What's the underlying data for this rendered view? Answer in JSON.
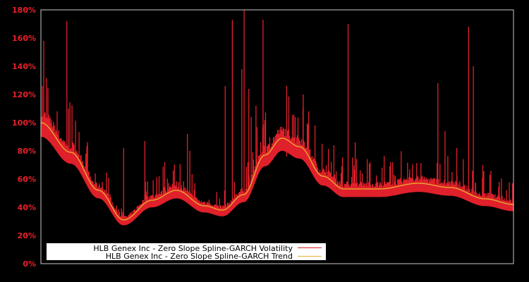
{
  "chart_data": {
    "type": "line",
    "title": "",
    "xlabel": "",
    "ylabel": "",
    "ylim": [
      0,
      180
    ],
    "y_ticks": [
      "0%",
      "20%",
      "40%",
      "60%",
      "80%",
      "100%",
      "120%",
      "140%",
      "160%",
      "180%"
    ],
    "grid": false,
    "legend_position": "lower-left",
    "colors": {
      "background": "#000000",
      "axis": "#c8c8c8",
      "tick_label": "#e8202a",
      "volatility": "#e0202a",
      "trend": "#e8b030",
      "legend_bg": "#ffffff"
    },
    "series": [
      {
        "name": "HLB Genex Inc - Zero Slope Spline-GARCH Volatility",
        "color": "#e0202a",
        "description": "Daily GARCH volatility; dense band slightly below/around trend with frequent spikes",
        "spikes_x_frac": [
          0.003,
          0.006,
          0.012,
          0.02,
          0.03,
          0.045,
          0.055,
          0.07,
          0.085,
          0.095,
          0.115,
          0.13,
          0.14,
          0.175,
          0.22,
          0.25,
          0.262,
          0.28,
          0.31,
          0.315,
          0.39,
          0.405,
          0.425,
          0.43,
          0.44,
          0.445,
          0.455,
          0.47,
          0.5,
          0.51,
          0.52,
          0.555,
          0.58,
          0.62,
          0.65,
          0.665,
          0.68,
          0.74,
          0.75,
          0.78,
          0.8,
          0.84,
          0.855,
          0.87,
          0.88,
          0.905,
          0.915,
          0.92,
          0.935,
          0.95,
          0.97,
          0.985,
          0.998
        ],
        "spikes_pct": [
          126,
          158,
          115,
          98,
          93,
          86,
          172,
          70,
          77,
          78,
          64,
          58,
          45,
          82,
          87,
          62,
          72,
          66,
          92,
          80,
          126,
          173,
          138,
          181,
          124,
          104,
          112,
          173,
          82,
          92,
          76,
          120,
          98,
          84,
          170,
          86,
          64,
          72,
          62,
          64,
          52,
          128,
          94,
          65,
          82,
          168,
          140,
          57,
          70,
          63,
          58,
          52,
          57
        ]
      },
      {
        "name": "HLB Genex Inc - Zero Slope Spline-GARCH Trend",
        "color": "#e8b030",
        "x_frac": [
          0.0,
          0.063,
          0.122,
          0.175,
          0.235,
          0.287,
          0.346,
          0.384,
          0.429,
          0.474,
          0.51,
          0.547,
          0.597,
          0.641,
          0.716,
          0.799,
          0.866,
          0.94,
          1.0
        ],
        "values": [
          100,
          79,
          52,
          31,
          45,
          52,
          41,
          38,
          49,
          77,
          89,
          83,
          62,
          53,
          53,
          57,
          54,
          46,
          42
        ]
      }
    ]
  },
  "legend": {
    "items": [
      {
        "label": "HLB Genex Inc - Zero Slope Spline-GARCH Volatility",
        "color": "#e0202a"
      },
      {
        "label": "HLB Genex Inc - Zero Slope Spline-GARCH Trend",
        "color": "#e8b030"
      }
    ]
  }
}
